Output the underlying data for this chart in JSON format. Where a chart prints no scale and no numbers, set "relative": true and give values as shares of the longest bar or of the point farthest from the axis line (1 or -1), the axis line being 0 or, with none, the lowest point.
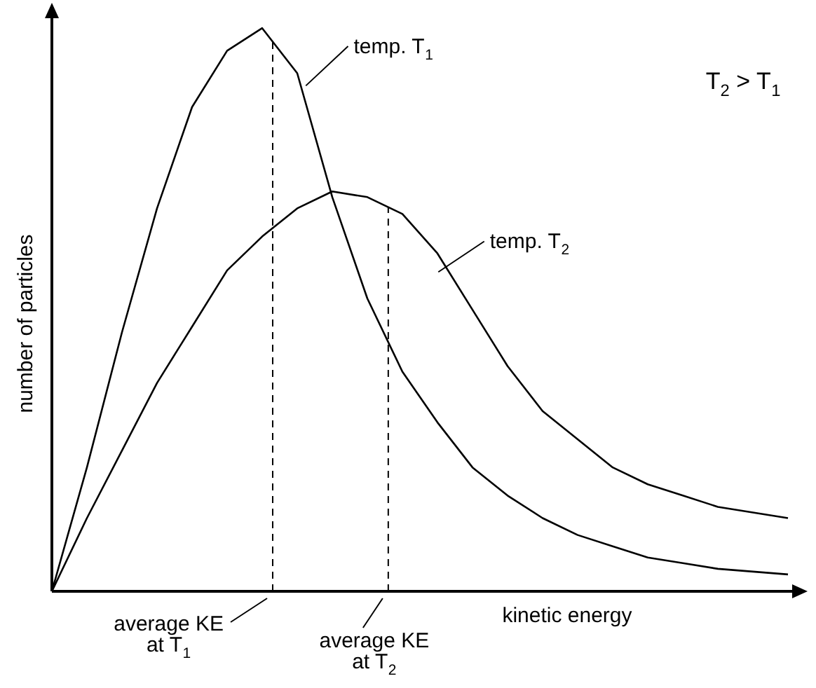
{
  "chart_data": {
    "type": "line",
    "relative": true,
    "xlabel": "kinetic energy",
    "ylabel": "number of particles",
    "categories": [
      null,
      null,
      null,
      null,
      null,
      null,
      null,
      null,
      null,
      null,
      null,
      null,
      null,
      null,
      null,
      null,
      null,
      null,
      null,
      null,
      null,
      null
    ],
    "series": [
      {
        "color": "#000000",
        "values": [
          0,
          0.22,
          0.46,
          0.68,
          0.86,
          0.96,
          1.0,
          0.92,
          0.7,
          0.52,
          0.39,
          0.3,
          0.22,
          0.17,
          0.13,
          0.1,
          0.08,
          0.06,
          0.05,
          0.04,
          0.035,
          0.03
        ]
      },
      {
        "color": "#000000",
        "values": [
          0,
          0.13,
          0.25,
          0.37,
          0.47,
          0.57,
          0.63,
          0.68,
          0.71,
          0.7,
          0.67,
          0.6,
          0.5,
          0.4,
          0.32,
          0.27,
          0.22,
          0.19,
          0.17,
          0.15,
          0.14,
          0.13
        ]
      }
    ],
    "annotations": [
      "temp. T$_{1}$",
      "temp. T$_{2}$",
      "T$_{2}$ > T$_{1}$",
      "average KE at T$_{1}$",
      "average KE at T$_{2}$"
    ],
    "legend": false,
    "marker": "none",
    "line_style": "solid"
  }
}
